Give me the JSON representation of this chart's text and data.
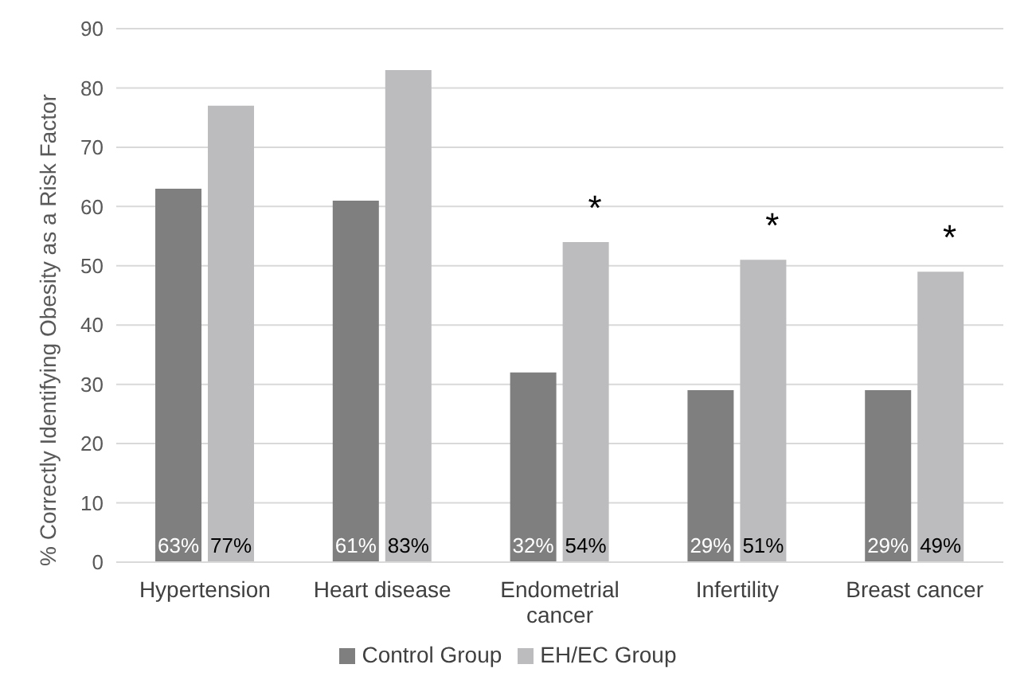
{
  "chart_data": {
    "type": "bar",
    "ylabel": "% Correctly Identifying Obesity as a Risk Factor",
    "categories": [
      "Hypertension",
      "Heart disease",
      "Endometrial cancer",
      "Infertility",
      "Breast cancer"
    ],
    "series": [
      {
        "name": "Control Group",
        "color": "#7f7f80",
        "values": [
          63,
          61,
          32,
          29,
          29
        ],
        "value_labels": [
          "63%",
          "61%",
          "32%",
          "29%",
          "29%"
        ]
      },
      {
        "name": "EH/EC Group",
        "color": "#bcbcbe",
        "values": [
          77,
          83,
          54,
          51,
          49
        ],
        "value_labels": [
          "77%",
          "83%",
          "54%",
          "51%",
          "49%"
        ]
      }
    ],
    "ylim": [
      0,
      90
    ],
    "yticks": [
      0,
      10,
      20,
      30,
      40,
      50,
      60,
      70,
      80,
      90
    ],
    "grid": "y",
    "legend": "bottom",
    "annotations": [
      {
        "text": "*",
        "x": "Endometrial cancer",
        "y": 54
      },
      {
        "text": "*",
        "x": "Infertility",
        "y": 51
      },
      {
        "text": "*",
        "x": "Breast cancer",
        "y": 49
      }
    ]
  }
}
